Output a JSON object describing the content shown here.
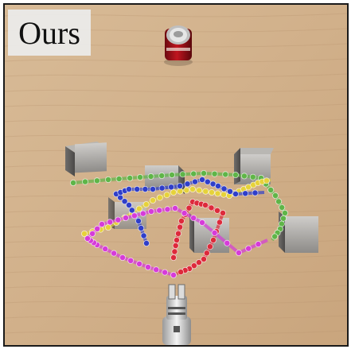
{
  "panel": {
    "method_label": "Ours",
    "colors": {
      "table_wood": "#d3b48f",
      "frame_border": "#1a1a1a",
      "label_background": "#ececec"
    }
  },
  "objects": {
    "target": "soda-can",
    "obstacles": [
      "cube-left-back",
      "cube-center-back",
      "cube-right-back",
      "cube-mid-left",
      "cube-mid-center",
      "cube-right-front"
    ],
    "robot": "robot-gripper"
  },
  "trajectory_colors": {
    "green": "#5fb548",
    "yellow": "#e6d23a",
    "blue": "#2f3ec9",
    "red": "#dd2a3b",
    "magenta": "#d63bd9"
  }
}
